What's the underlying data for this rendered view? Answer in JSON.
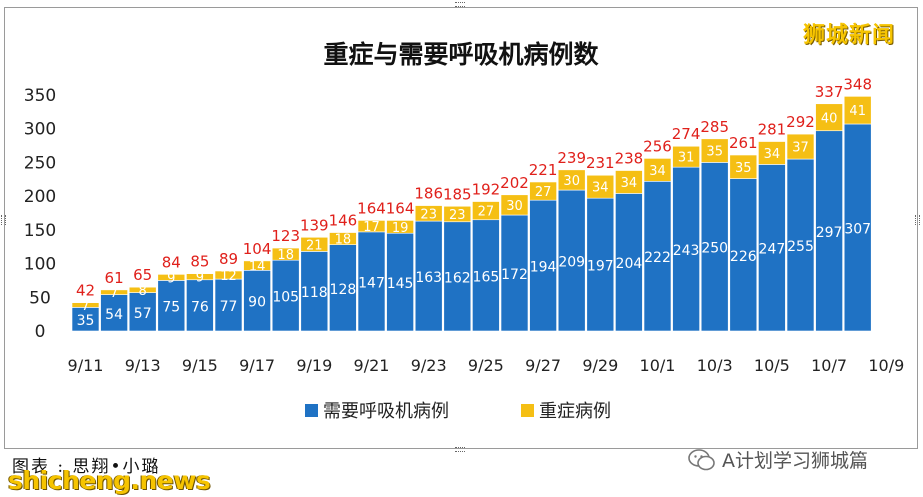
{
  "brand": "狮城新闻",
  "caption": "图表 : 思翔•小璐",
  "wechat_account": "A计划学习狮城篇",
  "site": "shicheng.news",
  "colors": {
    "blue": "#1f72c4",
    "yellow": "#f5bf14",
    "total_label": "#e0201b",
    "axis_text": "#222222"
  },
  "chart_data": {
    "type": "bar",
    "stacked": true,
    "title": "重症与需要呼吸机病例数",
    "categories": [
      "9/11",
      "9/12",
      "9/13",
      "9/14",
      "9/15",
      "9/16",
      "9/17",
      "9/18",
      "9/19",
      "9/20",
      "9/21",
      "9/22",
      "9/23",
      "9/24",
      "9/25",
      "9/26",
      "9/27",
      "9/28",
      "9/29",
      "9/30",
      "10/1",
      "10/2",
      "10/3",
      "10/4",
      "10/5",
      "10/6",
      "10/7",
      "10/8"
    ],
    "x_tick_labels": [
      "9/11",
      "9/13",
      "9/15",
      "9/17",
      "9/19",
      "9/21",
      "9/23",
      "9/25",
      "9/27",
      "9/29",
      "10/1",
      "10/3",
      "10/5",
      "10/7",
      "10/9"
    ],
    "series": [
      {
        "name": "需要呼吸机病例",
        "color": "#1f72c4",
        "values": [
          35,
          54,
          57,
          75,
          76,
          77,
          90,
          105,
          118,
          128,
          147,
          145,
          163,
          162,
          165,
          172,
          194,
          209,
          197,
          204,
          222,
          243,
          250,
          226,
          247,
          255,
          297,
          307
        ]
      },
      {
        "name": "重症病例",
        "color": "#f5bf14",
        "values": [
          7,
          7,
          8,
          9,
          9,
          12,
          14,
          18,
          21,
          18,
          17,
          19,
          23,
          23,
          27,
          30,
          27,
          30,
          34,
          34,
          34,
          31,
          35,
          35,
          34,
          37,
          40,
          41
        ]
      }
    ],
    "totals": [
      42,
      61,
      65,
      84,
      85,
      89,
      104,
      123,
      139,
      146,
      164,
      164,
      186,
      185,
      192,
      202,
      221,
      239,
      231,
      238,
      256,
      274,
      285,
      261,
      281,
      292,
      337,
      348
    ],
    "y_ticks": [
      0,
      50,
      100,
      150,
      200,
      250,
      300,
      350
    ],
    "ylim": [
      0,
      350
    ],
    "grid": false,
    "legend": "bottom"
  }
}
